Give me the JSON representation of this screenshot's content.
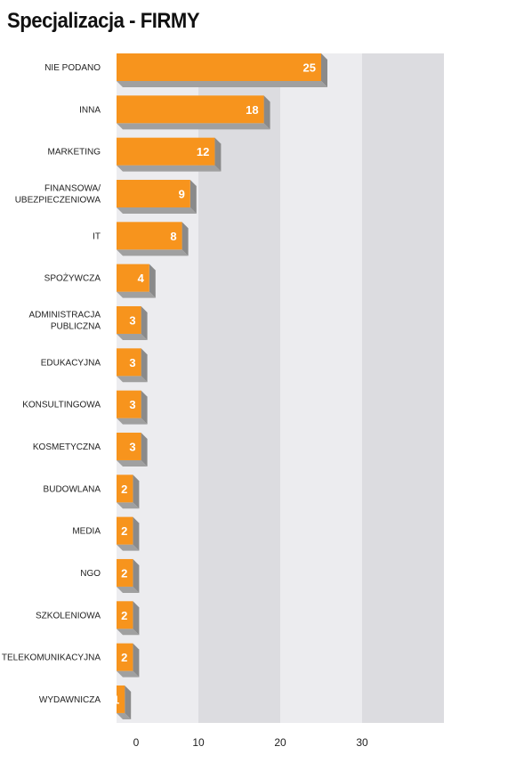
{
  "chart_data": {
    "type": "bar",
    "orientation": "horizontal",
    "title": "Specjalizacja - FIRMY",
    "categories": [
      "NIE PODANO",
      "INNA",
      "MARKETING",
      "FINANSOWA/\nUBEZPIECZENIOWA",
      "IT",
      "SPOŻYWCZA",
      "ADMINISTRACJA\nPUBLICZNA",
      "EDUKACYJNA",
      "KONSULTINGOWA",
      "KOSMETYCZNA",
      "BUDOWLANA",
      "MEDIA",
      "NGO",
      "SZKOLENIOWA",
      "TELEKOMUNIKACYJNA",
      "WYDAWNICZA"
    ],
    "values": [
      25,
      18,
      12,
      9,
      8,
      4,
      3,
      3,
      3,
      3,
      2,
      2,
      2,
      2,
      2,
      1
    ],
    "xlim": [
      0,
      40
    ],
    "xticks": [
      "0",
      "10",
      "20",
      "30"
    ],
    "grid": "alternating bands",
    "colors": {
      "bar_front": "#f7941d",
      "bar_top": "#f9a640",
      "bar_shadow": "#8a8a8a",
      "band_light": "#ececef",
      "band_dark": "#dcdce0"
    }
  }
}
